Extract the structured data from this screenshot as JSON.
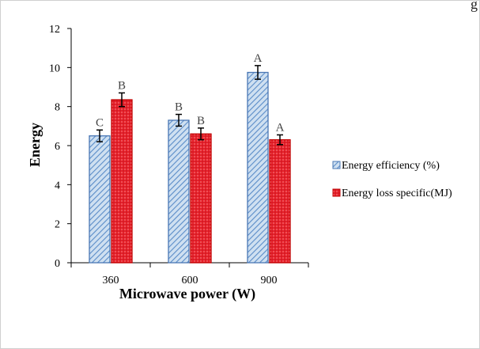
{
  "chart_data": {
    "type": "bar",
    "title": "",
    "xlabel": "Microwave power (W)",
    "ylabel": "Energy",
    "categories": [
      "360",
      "600",
      "900"
    ],
    "ylim": [
      0,
      12
    ],
    "yticks": [
      0,
      2,
      4,
      6,
      8,
      10,
      12
    ],
    "series": [
      {
        "name": "Energy efficiency (%)",
        "values": [
          6.5,
          7.3,
          9.75
        ],
        "errors": [
          0.3,
          0.3,
          0.35
        ],
        "letters": [
          "C",
          "B",
          "A"
        ],
        "color": "#9dbedf",
        "edge": "#4a77b4",
        "fill": "diagonal-hatch"
      },
      {
        "name": "Energy loss specific(MJ)",
        "values": [
          8.35,
          6.6,
          6.3
        ],
        "errors": [
          0.35,
          0.3,
          0.25
        ],
        "letters": [
          "B",
          "B",
          "A"
        ],
        "color": "#e8202a",
        "edge": "#c00000",
        "fill": "dotted"
      }
    ],
    "grid": false,
    "legend_position": "right"
  },
  "page": {
    "corner_fragment": "g"
  }
}
